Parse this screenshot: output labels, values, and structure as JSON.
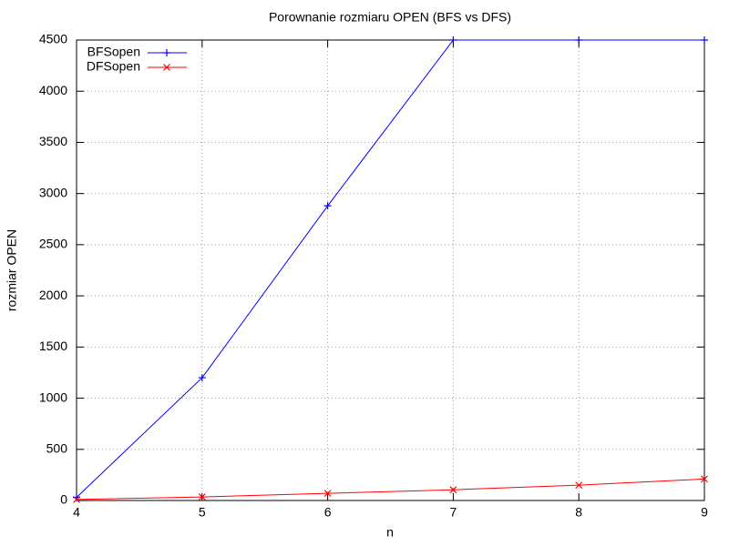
{
  "chart_data": {
    "type": "line",
    "title": "Porownanie rozmiaru OPEN (BFS vs DFS)",
    "x_label": "n",
    "y_label": "rozmiar OPEN",
    "x": [
      4,
      5,
      6,
      7,
      8,
      9
    ],
    "series": [
      {
        "name": "BFSopen",
        "color": "#0000ff",
        "marker": "+",
        "values": [
          30,
          1200,
          2880,
          4500,
          4500,
          4500
        ]
      },
      {
        "name": "DFSopen",
        "color": "#ff0000",
        "marker": "x",
        "values": [
          10,
          35,
          70,
          105,
          150,
          210
        ]
      }
    ],
    "xlim": [
      4,
      9
    ],
    "xticks": [
      4,
      5,
      6,
      7,
      8,
      9
    ],
    "ylim": [
      0,
      4500
    ],
    "yticks": [
      0,
      500,
      1000,
      1500,
      2000,
      2500,
      3000,
      3500,
      4000,
      4500
    ],
    "grid": true,
    "legend": "top-left"
  }
}
